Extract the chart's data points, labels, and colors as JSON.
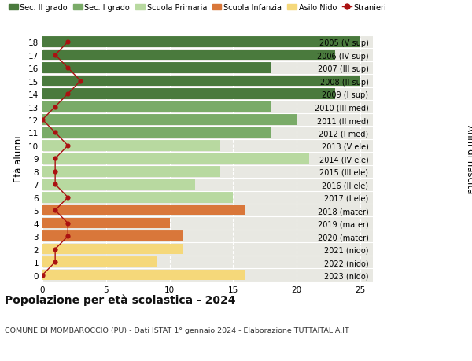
{
  "ages": [
    18,
    17,
    16,
    15,
    14,
    13,
    12,
    11,
    10,
    9,
    8,
    7,
    6,
    5,
    4,
    3,
    2,
    1,
    0
  ],
  "right_labels": [
    "2005 (V sup)",
    "2006 (IV sup)",
    "2007 (III sup)",
    "2008 (II sup)",
    "2009 (I sup)",
    "2010 (III med)",
    "2011 (II med)",
    "2012 (I med)",
    "2013 (V ele)",
    "2014 (IV ele)",
    "2015 (III ele)",
    "2016 (II ele)",
    "2017 (I ele)",
    "2018 (mater)",
    "2019 (mater)",
    "2020 (mater)",
    "2021 (nido)",
    "2022 (nido)",
    "2023 (nido)"
  ],
  "bar_values": [
    25,
    23,
    18,
    25,
    23,
    18,
    20,
    18,
    14,
    21,
    14,
    12,
    15,
    16,
    10,
    11,
    11,
    9,
    16
  ],
  "bar_colors": [
    "#4a7a3d",
    "#4a7a3d",
    "#4a7a3d",
    "#4a7a3d",
    "#4a7a3d",
    "#7aab68",
    "#7aab68",
    "#7aab68",
    "#b8d9a0",
    "#b8d9a0",
    "#b8d9a0",
    "#b8d9a0",
    "#b8d9a0",
    "#d9773a",
    "#d9773a",
    "#d9773a",
    "#f5d87a",
    "#f5d87a",
    "#f5d87a"
  ],
  "stranieri_values": [
    2,
    1,
    2,
    3,
    2,
    1,
    0,
    1,
    2,
    1,
    1,
    1,
    2,
    1,
    2,
    2,
    1,
    1,
    0
  ],
  "stranieri_color": "#aa1111",
  "legend_items": [
    {
      "label": "Sec. II grado",
      "color": "#4a7a3d"
    },
    {
      "label": "Sec. I grado",
      "color": "#7aab68"
    },
    {
      "label": "Scuola Primaria",
      "color": "#b8d9a0"
    },
    {
      "label": "Scuola Infanzia",
      "color": "#d9773a"
    },
    {
      "label": "Asilo Nido",
      "color": "#f5d87a"
    },
    {
      "label": "Stranieri",
      "color": "#aa1111"
    }
  ],
  "ylabel_left": "Età alunni",
  "ylabel_right": "Anni di nascita",
  "xlim": [
    0,
    26
  ],
  "xticks": [
    0,
    5,
    10,
    15,
    20,
    25
  ],
  "title": "Popolazione per età scolastica - 2024",
  "subtitle": "COMUNE DI MOMBAROCCIO (PU) - Dati ISTAT 1° gennaio 2024 - Elaborazione TUTTAITALIA.IT",
  "fig_bg_color": "#ffffff",
  "plot_bg_color": "#e8e8e2"
}
